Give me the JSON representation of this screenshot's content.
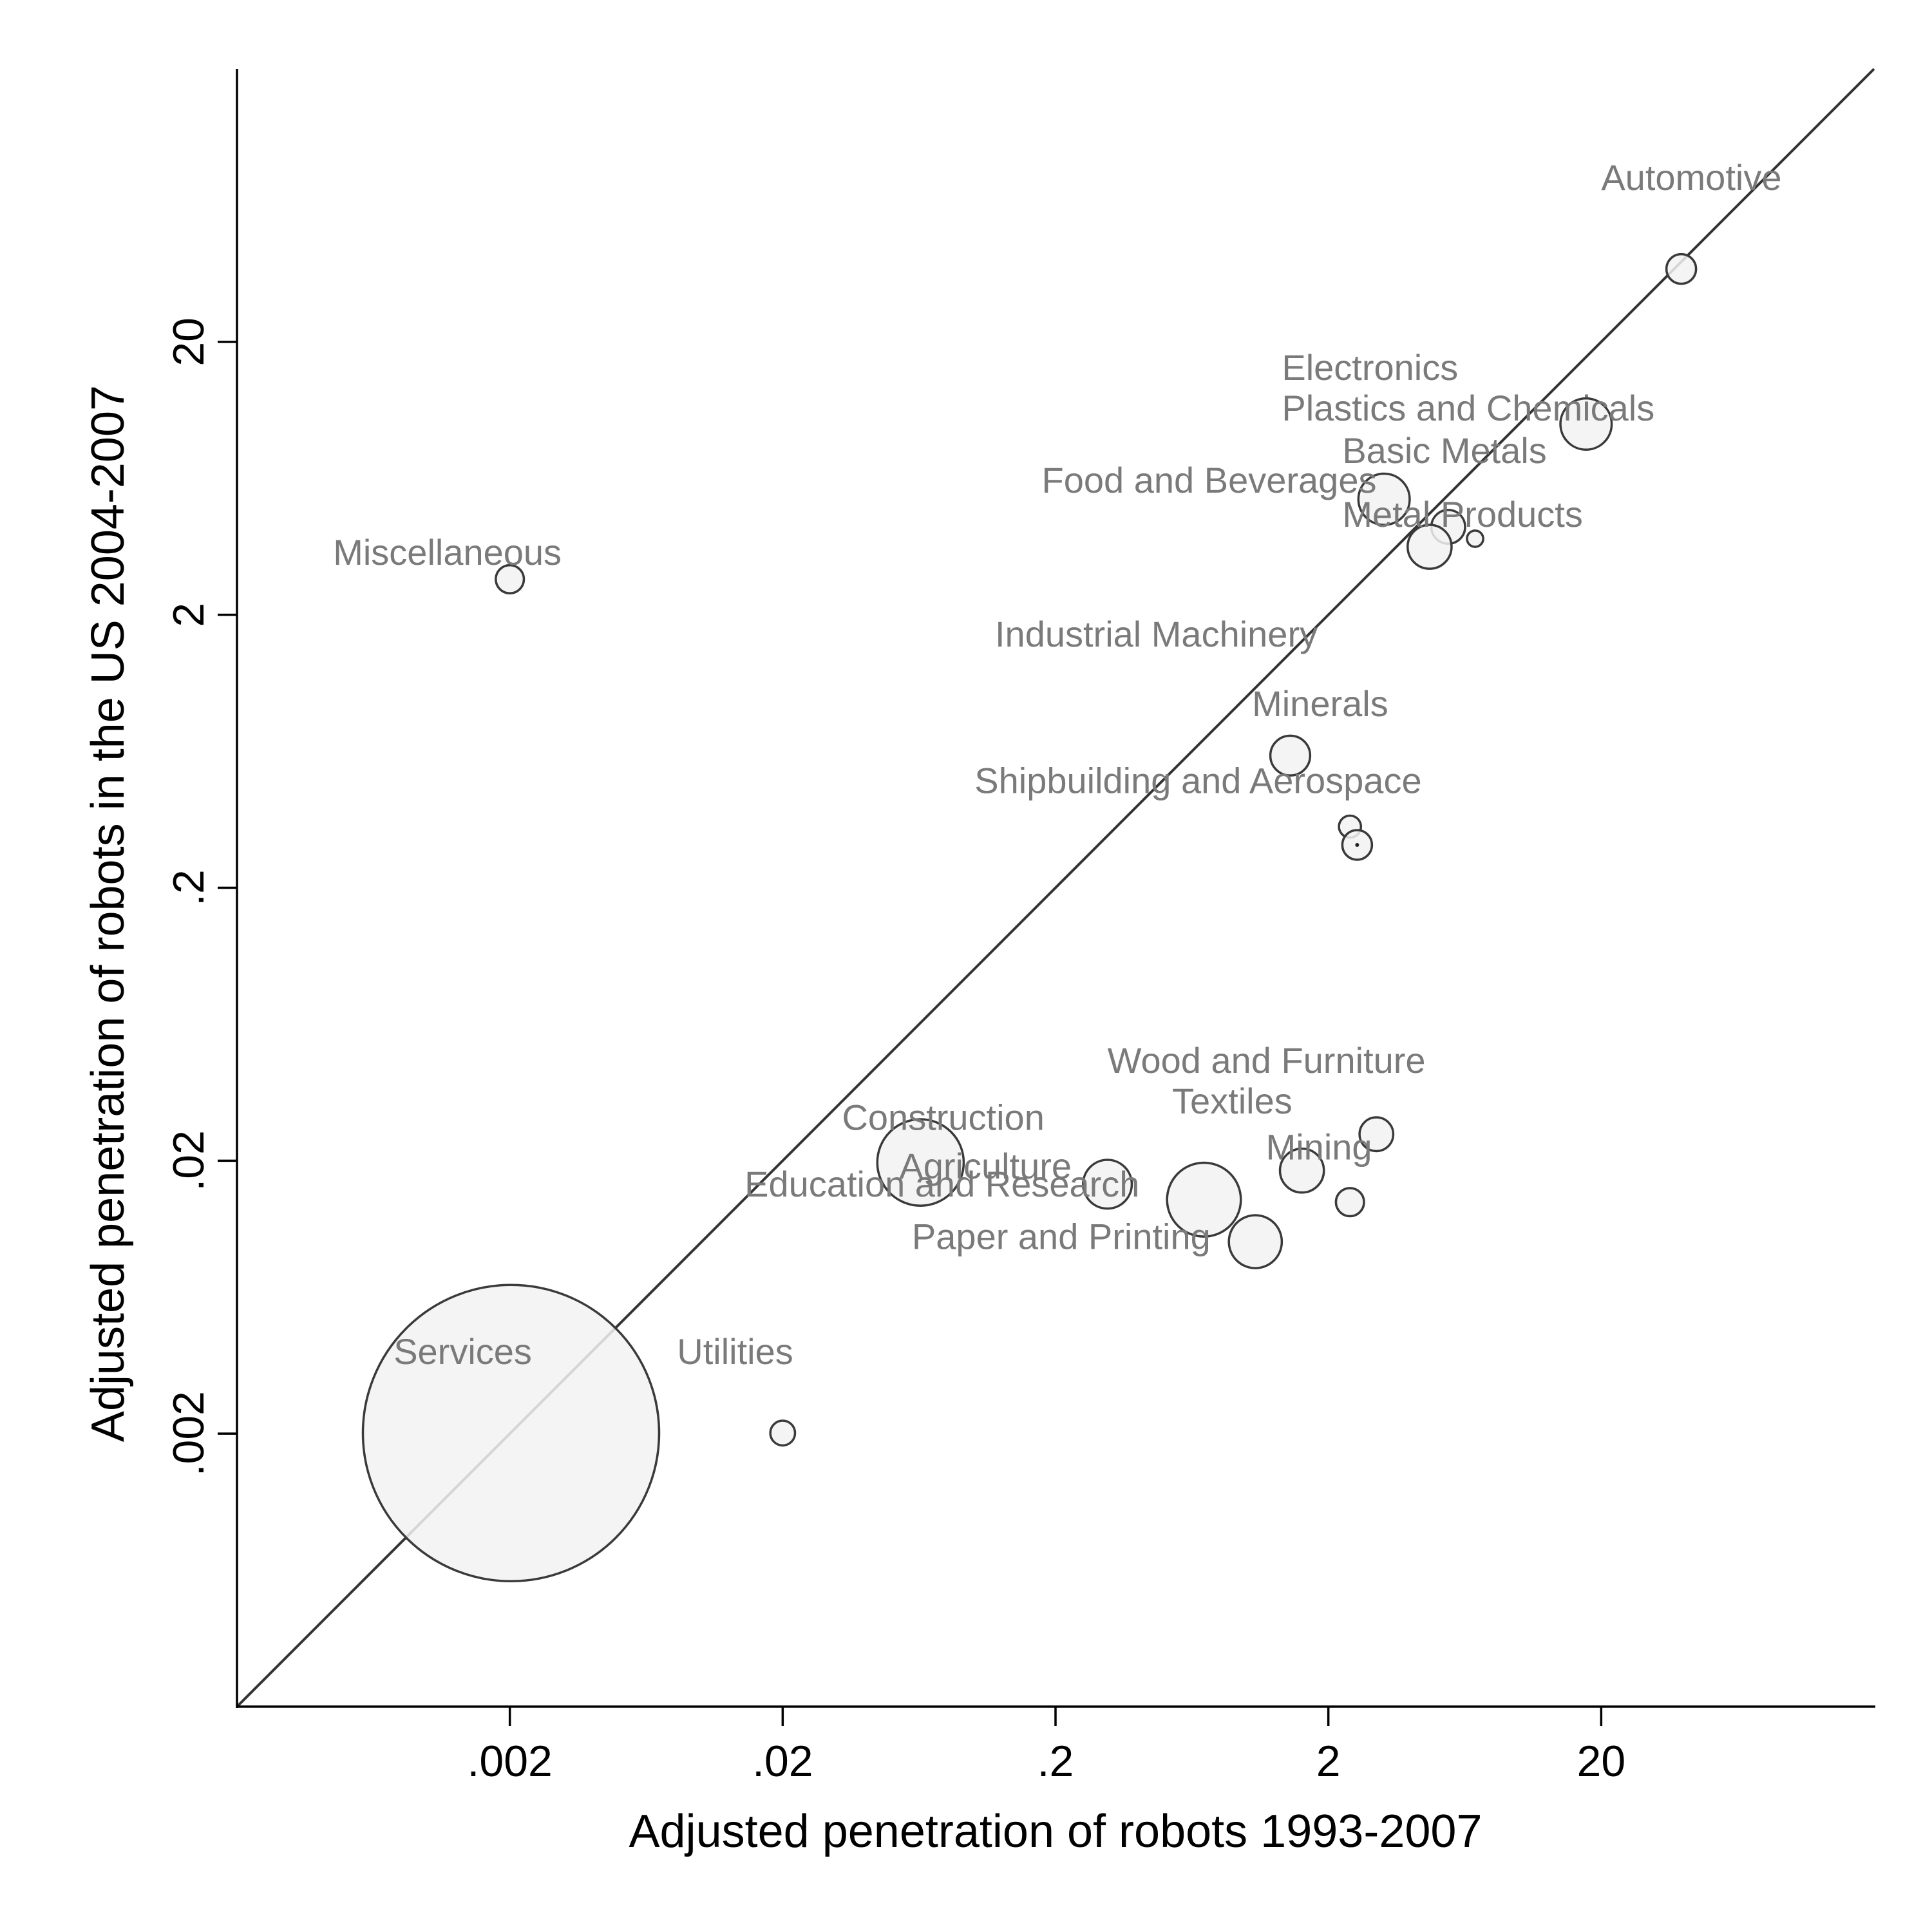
{
  "chart_data": {
    "type": "scatter",
    "title": "",
    "xlabel": "Adjusted penetration of robots 1993-2007",
    "ylabel": "Adjusted penetration of robots in the US 2004-2007",
    "x_scale": "log",
    "y_scale": "log",
    "xlim": [
      0.0002,
      200
    ],
    "ylim": [
      0.0002,
      200
    ],
    "x_ticks": [
      {
        "value": 0.002,
        "label": ".002"
      },
      {
        "value": 0.02,
        "label": ".02"
      },
      {
        "value": 0.2,
        "label": ".2"
      },
      {
        "value": 2,
        "label": "2"
      },
      {
        "value": 20,
        "label": "20"
      }
    ],
    "y_ticks": [
      {
        "value": 0.002,
        "label": ".002"
      },
      {
        "value": 0.02,
        "label": ".02"
      },
      {
        "value": 0.2,
        "label": ".2"
      },
      {
        "value": 2,
        "label": "2"
      },
      {
        "value": 20,
        "label": "20"
      }
    ],
    "grid": false,
    "reference_line": "45-degree",
    "bubble_color": "#f2f2f2",
    "label_color": "#7a7a7a",
    "points": [
      {
        "label": "Automotive",
        "x": 39.3,
        "y": 37.0,
        "size": 1.0
      },
      {
        "label": "Electronics",
        "x": 17.6,
        "y": 10.0,
        "size": 3.0
      },
      {
        "label": "Plastics and Chemicals",
        "x": 3.2,
        "y": 5.3,
        "size": 3.0
      },
      {
        "label": "Basic Metals",
        "x": 5.5,
        "y": 4.2,
        "size": 1.3
      },
      {
        "label": "Food and Beverages",
        "x": 6.9,
        "y": 3.8,
        "size": 0.3
      },
      {
        "label": "Metal Products",
        "x": 4.7,
        "y": 3.55,
        "size": 2.2
      },
      {
        "label": "Miscellaneous",
        "x": 0.002,
        "y": 2.7,
        "size": 0.9
      },
      {
        "label": "Industrial Machinery",
        "x": 1.45,
        "y": 0.61,
        "size": 1.8
      },
      {
        "label": "Minerals",
        "x": 2.4,
        "y": 0.335,
        "size": 0.55
      },
      {
        "label": "Shipbuilding and Aerospace",
        "x": 2.55,
        "y": 0.287,
        "size": 1.0
      },
      {
        "label": "Wood and Furniture",
        "x": 3.0,
        "y": 0.025,
        "size": 1.3
      },
      {
        "label": "Textiles",
        "x": 1.6,
        "y": 0.0184,
        "size": 2.2
      },
      {
        "label": "Mining",
        "x": 2.4,
        "y": 0.0141,
        "size": 0.9
      },
      {
        "label": "Construction",
        "x": 0.064,
        "y": 0.0197,
        "size": 8.5
      },
      {
        "label": "Agriculture",
        "x": 0.31,
        "y": 0.0164,
        "size": 2.7
      },
      {
        "label": "Education and Research",
        "x": 0.7,
        "y": 0.0144,
        "size": 6.2
      },
      {
        "label": "Paper and Printing",
        "x": 1.08,
        "y": 0.0101,
        "size": 3.2
      },
      {
        "label": "Services",
        "x": 0.00202,
        "y": 0.00201,
        "size": 100.0
      },
      {
        "label": "Utilities",
        "x": 0.02,
        "y": 0.00201,
        "size": 0.7
      }
    ],
    "labels": [
      {
        "text": "Automotive",
        "x": 20.0,
        "y": 72.0
      },
      {
        "text": "Electronics",
        "x": 1.35,
        "y": 14.5
      },
      {
        "text": "Plastics and Chemicals",
        "x": 1.35,
        "y": 10.3
      },
      {
        "text": "Basic Metals",
        "x": 2.25,
        "y": 7.2
      },
      {
        "text": "Food and Beverages",
        "x": 0.178,
        "y": 5.6
      },
      {
        "text": "Metal Products",
        "x": 2.25,
        "y": 4.2
      },
      {
        "text": "Miscellaneous",
        "x": 0.00045,
        "y": 3.05
      },
      {
        "text": "Industrial Machinery",
        "x": 0.12,
        "y": 1.53
      },
      {
        "text": "Minerals",
        "x": 1.05,
        "y": 0.85
      },
      {
        "text": "Shipbuilding and Aerospace",
        "x": 0.101,
        "y": 0.445
      },
      {
        "text": "Wood and Furniture",
        "x": 0.31,
        "y": 0.042
      },
      {
        "text": "Textiles",
        "x": 0.535,
        "y": 0.0298
      },
      {
        "text": "Mining",
        "x": 1.18,
        "y": 0.0202
      },
      {
        "text": "Construction",
        "x": 0.033,
        "y": 0.0259
      },
      {
        "text": "Agriculture",
        "x": 0.0535,
        "y": 0.0172
      },
      {
        "text": "Education and Research",
        "x": 0.0145,
        "y": 0.0148
      },
      {
        "text": "Paper and Printing",
        "x": 0.0595,
        "y": 0.0095
      },
      {
        "text": "Services",
        "x": 0.00075,
        "y": 0.0036
      },
      {
        "text": "Utilities",
        "x": 0.0082,
        "y": 0.0036
      }
    ]
  }
}
